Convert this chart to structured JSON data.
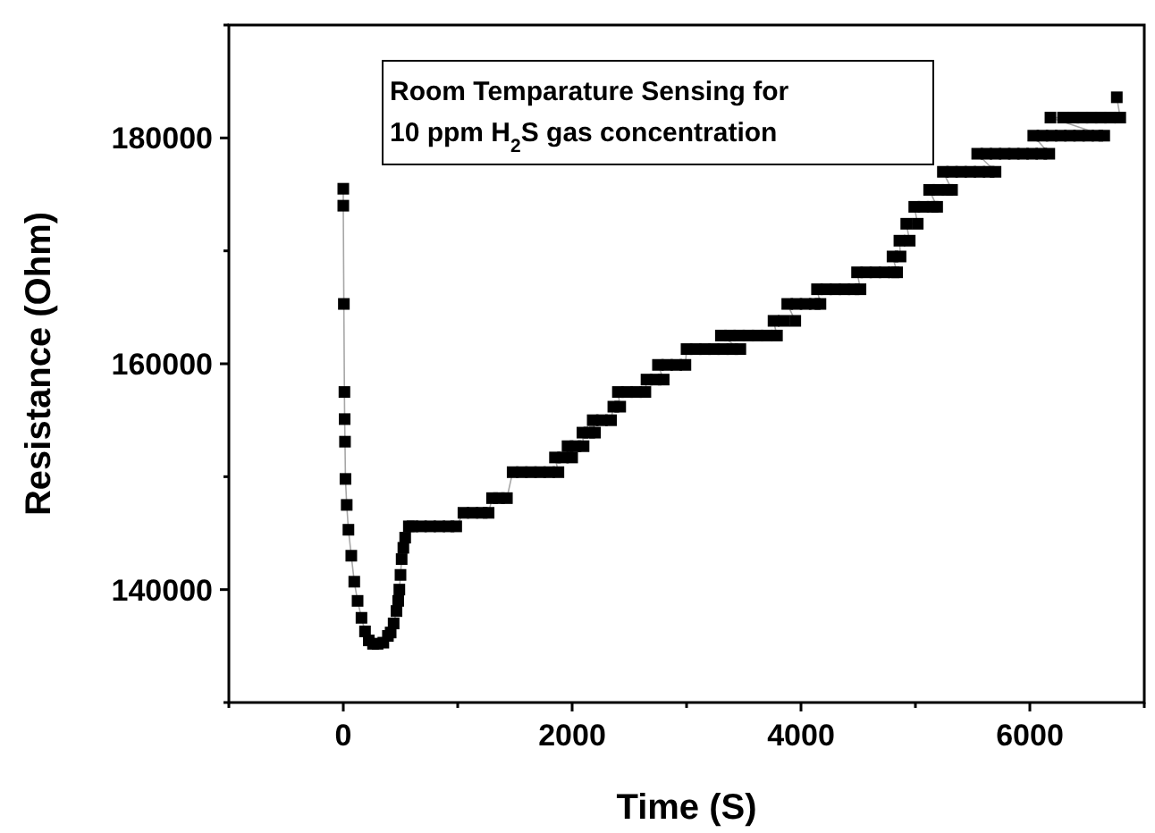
{
  "chart_data": {
    "type": "line",
    "xlabel": "Time (S)",
    "ylabel": "Resistance (Ohm)",
    "annotations": [
      "Room Temparature Sensing for",
      "10 ppm H$_{2}$S gas concentration"
    ],
    "xlim": [
      -1000,
      7000
    ],
    "ylim": [
      130000,
      190000
    ],
    "xticks": [
      {
        "value": -1000,
        "label": null
      },
      0,
      {
        "value": 1000,
        "label": null
      },
      2000,
      {
        "value": 3000,
        "label": null
      },
      4000,
      {
        "value": 5000,
        "label": null
      },
      6000,
      {
        "value": 7000,
        "label": null
      }
    ],
    "yticks": [
      {
        "value": 130000,
        "label": null
      },
      140000,
      {
        "value": 150000,
        "label": null
      },
      160000,
      {
        "value": 170000,
        "label": null
      },
      180000,
      {
        "value": 190000,
        "label": null
      }
    ],
    "grid": false,
    "marker": "square",
    "line_style": "solid",
    "series": [
      {
        "color": "#000000",
        "x": [
          0,
          0,
          5,
          10,
          12,
          15,
          19,
          30,
          45,
          70,
          96,
          125,
          159,
          190,
          223,
          260,
          300,
          350,
          390,
          414,
          440,
          465,
          480,
          490,
          500,
          510,
          525,
          541,
          573,
          605,
          680,
          760,
          840,
          920,
          987,
          1050,
          1130,
          1210,
          1270,
          1300,
          1360,
          1430,
          1480,
          1560,
          1640,
          1720,
          1800,
          1880,
          1850,
          1920,
          2000,
          1960,
          2030,
          2100,
          2090,
          2150,
          2200,
          2180,
          2260,
          2340,
          2360,
          2420,
          2400,
          2480,
          2560,
          2640,
          2650,
          2730,
          2800,
          2750,
          2830,
          2910,
          2990,
          3000,
          3080,
          3160,
          3240,
          3320,
          3400,
          3470,
          3300,
          3380,
          3460,
          3540,
          3620,
          3700,
          3790,
          3760,
          3850,
          3950,
          3880,
          3960,
          4040,
          4120,
          4170,
          4140,
          4220,
          4300,
          4380,
          4460,
          4520,
          4490,
          4570,
          4650,
          4730,
          4810,
          4840,
          4800,
          4870,
          4860,
          4950,
          4920,
          5020,
          4990,
          5070,
          5150,
          5190,
          5120,
          5200,
          5280,
          5320,
          5240,
          5320,
          5400,
          5480,
          5560,
          5640,
          5700,
          5540,
          5620,
          5700,
          5780,
          5860,
          5940,
          6020,
          6100,
          6170,
          6030,
          6110,
          6190,
          6270,
          6350,
          6430,
          6510,
          6590,
          6650,
          6180,
          6290,
          6380,
          6460,
          6540,
          6620,
          6700,
          6790,
          6760
        ],
        "values": [
          175500,
          174000,
          165300,
          157500,
          155100,
          153100,
          149800,
          147500,
          145300,
          143000,
          140700,
          139000,
          137500,
          136300,
          135500,
          135200,
          135200,
          135300,
          135900,
          136200,
          137000,
          138100,
          139000,
          140000,
          141300,
          142700,
          143700,
          144600,
          145600,
          145600,
          145600,
          145600,
          145600,
          145600,
          145600,
          146800,
          146800,
          146800,
          146800,
          148100,
          148100,
          148100,
          150400,
          150400,
          150400,
          150400,
          150400,
          150400,
          151700,
          151700,
          151700,
          152700,
          152700,
          152700,
          153900,
          153900,
          153900,
          155000,
          155000,
          155000,
          156200,
          156200,
          157500,
          157500,
          157500,
          157500,
          158600,
          158600,
          158600,
          159900,
          159900,
          159900,
          159900,
          161300,
          161300,
          161300,
          161300,
          161300,
          161300,
          161300,
          162500,
          162500,
          162500,
          162500,
          162500,
          162500,
          162500,
          163800,
          163800,
          163800,
          165300,
          165300,
          165300,
          165300,
          165300,
          166600,
          166600,
          166600,
          166600,
          166600,
          166600,
          168100,
          168100,
          168100,
          168100,
          168100,
          168100,
          169500,
          169500,
          170900,
          170900,
          172400,
          172400,
          173900,
          173900,
          173900,
          173900,
          175400,
          175400,
          175400,
          175400,
          177000,
          177000,
          177000,
          177000,
          177000,
          177000,
          177000,
          178600,
          178600,
          178600,
          178600,
          178600,
          178600,
          178600,
          178600,
          178600,
          180200,
          180200,
          180200,
          180200,
          180200,
          180200,
          180200,
          180200,
          180200,
          181800,
          181800,
          181800,
          181800,
          181800,
          181800,
          181800,
          181800,
          183600
        ]
      }
    ]
  }
}
